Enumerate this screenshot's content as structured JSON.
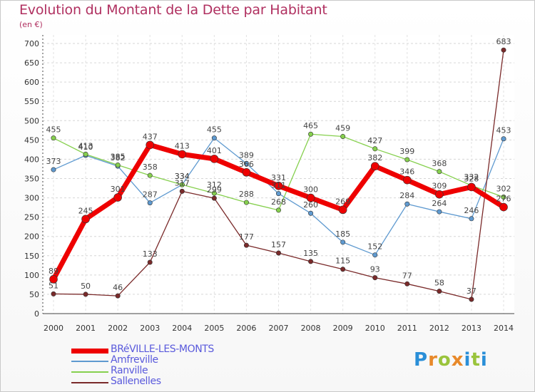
{
  "title": "Evolution du Montant de la Dette par Habitant",
  "unit": "(en €)",
  "logo": "Proxiti",
  "logo_colors": [
    "#2a8fd8",
    "#e8892a",
    "#9ac43c",
    "#e8892a",
    "#2a8fd8",
    "#9ac43c",
    "#2a8fd8"
  ],
  "chart_data": {
    "type": "line",
    "title": "Evolution du Montant de la Dette par Habitant",
    "ylabel": "(en €)",
    "xlabel": "",
    "x": [
      "2000",
      "2001",
      "2002",
      "2003",
      "2004",
      "2005",
      "2006",
      "2007",
      "2008",
      "2009",
      "2010",
      "2011",
      "2012",
      "2013",
      "2014"
    ],
    "ylim": [
      0,
      700
    ],
    "yticks": [
      0,
      50,
      100,
      150,
      200,
      250,
      300,
      350,
      400,
      450,
      500,
      550,
      600,
      650,
      700
    ],
    "grid": true,
    "legend_position": "bottom-left",
    "series": [
      {
        "name": "BRéVILLE-LES-MONTS",
        "color": "#ee0000",
        "width": 7,
        "values": [
          89,
          245,
          301,
          437,
          413,
          401,
          366,
          331,
          300,
          269,
          382,
          346,
          309,
          328,
          276
        ],
        "labels": [
          "89",
          "245",
          "301",
          "437",
          "413",
          "401",
          "366",
          "331",
          "300",
          "269",
          "382",
          "346",
          "309",
          "328",
          "276"
        ]
      },
      {
        "name": "Amfreville",
        "color": "#5f9ad0",
        "width": 1.3,
        "values": [
          373,
          410,
          382,
          287,
          334,
          455,
          389,
          311,
          260,
          185,
          152,
          284,
          264,
          246,
          453
        ],
        "labels": [
          "373",
          "410",
          "382",
          "287",
          "334",
          "455",
          "389",
          "311",
          "260",
          "185",
          "152",
          "284",
          "264",
          "246",
          "453"
        ]
      },
      {
        "name": "Ranville",
        "color": "#86d04e",
        "width": 1.3,
        "values": [
          455,
          413,
          385,
          358,
          334,
          312,
          288,
          268,
          465,
          459,
          427,
          399,
          368,
          332,
          302
        ],
        "labels": [
          "455",
          "413",
          "385",
          "358",
          "334",
          "312",
          "288",
          "268",
          "465",
          "459",
          "427",
          "399",
          "368",
          "332",
          "302"
        ]
      },
      {
        "name": "Sallenelles",
        "color": "#7a2a2a",
        "width": 1.3,
        "values": [
          51,
          50,
          46,
          133,
          317,
          299,
          177,
          157,
          135,
          115,
          93,
          77,
          58,
          37,
          683
        ],
        "labels": [
          "51",
          "50",
          "46",
          "133",
          "317",
          "299",
          "177",
          "157",
          "135",
          "115",
          "93",
          "77",
          "58",
          "37",
          "683"
        ]
      }
    ]
  }
}
